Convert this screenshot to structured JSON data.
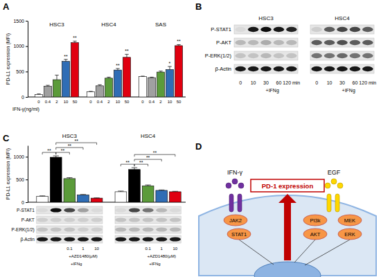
{
  "panel_labels": [
    "A",
    "B",
    "C",
    "D"
  ],
  "chart_data": [
    {
      "type": "bar",
      "y_label": "PD-L1 expression (MFI)",
      "x_label": "IFN-γ(ng/ml)",
      "categories": [
        "0",
        "0.4",
        "2",
        "10",
        "50"
      ],
      "colors": [
        "#ffffff",
        "#a0a0a0",
        "#5b9b3a",
        "#2f6db5",
        "#e00010"
      ],
      "ylim": [
        0,
        1500
      ],
      "yticks": [
        0,
        500,
        1000,
        1500
      ],
      "series": [
        {
          "name": "HSC3",
          "values": [
            50,
            210,
            340,
            700,
            1070
          ],
          "errors": [
            10,
            20,
            90,
            40,
            30
          ],
          "significance": [
            null,
            null,
            null,
            "**",
            "**"
          ]
        },
        {
          "name": "HSC4",
          "values": [
            100,
            220,
            370,
            530,
            780
          ],
          "errors": [
            10,
            20,
            20,
            30,
            60
          ],
          "significance": [
            null,
            null,
            null,
            "**",
            "**"
          ]
        },
        {
          "name": "SAS",
          "values": [
            400,
            380,
            490,
            540,
            1010
          ],
          "errors": [
            10,
            10,
            20,
            60,
            20
          ],
          "significance": [
            null,
            null,
            null,
            "*",
            "**"
          ]
        }
      ]
    },
    {
      "type": "bar",
      "y_label": "PD-L1 expression (MFI)",
      "colors": [
        "#ffffff",
        "#000000",
        "#5b9b3a",
        "#2f6db5",
        "#e00010"
      ],
      "ylim": [
        0,
        1250
      ],
      "yticks": [
        0,
        500,
        1000
      ],
      "tick_labels": "y",
      "series": [
        {
          "name": "HSC3",
          "values": [
            130,
            990,
            520,
            160,
            90
          ],
          "errors": [
            10,
            30,
            20,
            10,
            5
          ]
        },
        {
          "name": "HSC4",
          "values": [
            230,
            720,
            360,
            260,
            230
          ],
          "errors": [
            15,
            40,
            20,
            10,
            10
          ]
        }
      ],
      "comparisons": [
        {
          "bars": [
            0,
            1
          ],
          "label": "**"
        },
        {
          "bars": [
            1,
            2
          ],
          "label": "**"
        },
        {
          "bars": [
            1,
            3
          ],
          "label": "**"
        },
        {
          "bars": [
            1,
            4
          ],
          "label": "**"
        }
      ]
    }
  ],
  "blots": [
    {
      "rows": [
        "P-STAT1",
        "P-AKT",
        "P-ERK(1/2)",
        "β-Actin"
      ],
      "lanes": [
        "0",
        "10",
        "30",
        "60",
        "120 min"
      ],
      "treatment": "+IFNg",
      "cells": [
        {
          "name": "HSC3",
          "bands": [
            [
              0.05,
              0.9,
              0.95,
              0.9,
              0.85
            ],
            [
              0.2,
              0.2,
              0.25,
              0.2,
              0.2
            ],
            [
              0.15,
              0.15,
              0.2,
              0.15,
              0.15
            ],
            [
              0.9,
              0.9,
              0.9,
              0.9,
              0.9
            ]
          ]
        },
        {
          "name": "HSC4",
          "bands": [
            [
              0.1,
              0.6,
              0.7,
              0.7,
              0.6
            ],
            [
              0.6,
              0.6,
              0.65,
              0.6,
              0.6
            ],
            [
              0.5,
              0.5,
              0.55,
              0.5,
              0.5
            ],
            [
              0.9,
              0.9,
              0.9,
              0.9,
              0.9
            ]
          ]
        }
      ]
    },
    {
      "rows": [
        "P-STAT1",
        "P-AKT",
        "P-ERK(1/2)",
        "β-Actin"
      ],
      "lanes": [
        null,
        null,
        "0.1",
        "1",
        "10"
      ],
      "inhibitor": "+AZD1480(μM)",
      "treatment": "+IFNg",
      "cells": [
        {
          "bands": [
            [
              0.05,
              0.95,
              0.7,
              0.3,
              0.05
            ],
            [
              0.1,
              0.1,
              0.1,
              0.1,
              0.1
            ],
            [
              0.15,
              0.15,
              0.15,
              0.1,
              0.1
            ],
            [
              0.9,
              0.9,
              0.9,
              0.9,
              0.9
            ]
          ]
        },
        {
          "bands": [
            [
              0.05,
              0.7,
              0.5,
              0.2,
              0.05
            ],
            [
              0.15,
              0.15,
              0.15,
              0.15,
              0.15
            ],
            [
              0.2,
              0.2,
              0.2,
              0.2,
              0.2
            ],
            [
              0.9,
              0.9,
              0.9,
              0.9,
              0.9
            ]
          ]
        }
      ]
    }
  ],
  "diagram": {
    "ligands": [
      "IFN-γ",
      "EGF"
    ],
    "output": "PD-1 expression",
    "nodes": [
      [
        "JAK2",
        "STAT1"
      ],
      [
        "PI3k",
        "AKT"
      ],
      [
        "MEK",
        "ERK"
      ]
    ]
  }
}
